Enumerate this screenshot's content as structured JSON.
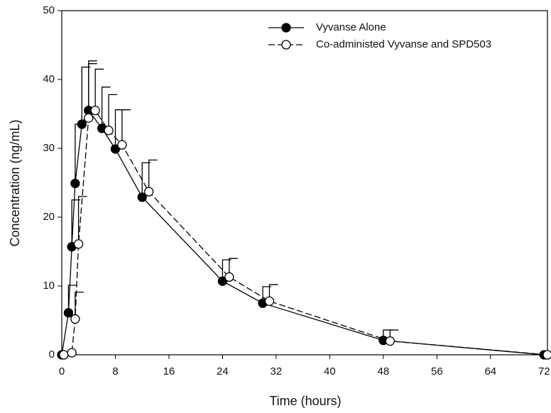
{
  "chart_data": {
    "type": "line",
    "xlabel": "Time (hours)",
    "ylabel": "Concentration (ng/mL)",
    "xlim": [
      0,
      72.5
    ],
    "ylim": [
      0,
      50
    ],
    "xticks": [
      0,
      8,
      16,
      24,
      32,
      40,
      48,
      56,
      64,
      72
    ],
    "yticks": [
      0,
      10,
      20,
      30,
      40,
      50
    ],
    "legend": "upper right",
    "series": [
      {
        "name": "Vyvanse Alone",
        "color": "#000000",
        "marker": "filled",
        "dash": false,
        "x": [
          0,
          1,
          1.5,
          2,
          3,
          4,
          6,
          8,
          12,
          24,
          30,
          48,
          72
        ],
        "values": [
          0,
          6.1,
          15.7,
          24.9,
          33.5,
          35.5,
          32.9,
          29.9,
          22.9,
          10.7,
          7.5,
          2.1,
          0
        ],
        "errors": [
          null,
          4.0,
          6.8,
          8.6,
          8.3,
          7.2,
          6.0,
          5.7,
          5.0,
          3.1,
          2.4,
          1.5,
          null
        ]
      },
      {
        "name": "Co-administed Vyvanse and SPD503",
        "color": "#000000",
        "marker": "open",
        "dash": true,
        "x": [
          0.3,
          1.5,
          2,
          2.5,
          4,
          5,
          7,
          9,
          13,
          25,
          31,
          49,
          72.5
        ],
        "values": [
          0,
          0.3,
          5.2,
          16.1,
          34.4,
          35.5,
          32.6,
          30.5,
          23.7,
          11.3,
          7.8,
          2.0,
          0
        ],
        "errors": [
          null,
          null,
          3.9,
          6.9,
          7.9,
          6.0,
          5.2,
          5.1,
          4.6,
          2.7,
          2.4,
          1.6,
          null
        ]
      }
    ]
  }
}
